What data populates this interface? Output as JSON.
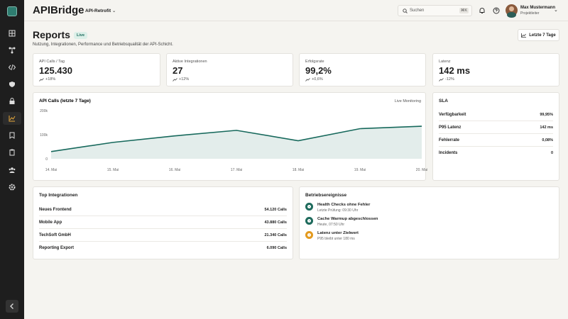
{
  "brand": "APIBridge",
  "project": "API-Retrofit",
  "search": {
    "placeholder": "Suchen",
    "shortcut": "⌘K"
  },
  "user": {
    "name": "Max Mustermann",
    "role": "Projektleiter"
  },
  "header": {
    "title": "Reports",
    "badge": "Live",
    "subtitle": "Nutzung, Integrationen, Performance und Betriebsqualität der API-Schicht.",
    "button": "Letzte 7 Tage"
  },
  "kpis": [
    {
      "label": "API Calls / Tag",
      "value": "125.430",
      "trend": "+18%"
    },
    {
      "label": "Aktive Integrationen",
      "value": "27",
      "trend": "+12%"
    },
    {
      "label": "Erfolgsrate",
      "value": "99,2%",
      "trend": "+0,6%"
    },
    {
      "label": "Latenz",
      "value": "142 ms",
      "trend": "-12%"
    }
  ],
  "chart": {
    "type": "line",
    "title": "API Calls (letzte 7 Tage)",
    "note": "Live Monitoring",
    "categories": [
      "14. Mai",
      "15. Mai",
      "16. Mai",
      "17. Mai",
      "18. Mai",
      "19. Mai",
      "20. Mai"
    ],
    "values": [
      30000,
      68000,
      95000,
      118000,
      75000,
      125000,
      135000
    ],
    "color": "#17695c",
    "ylim": [
      0,
      200000
    ],
    "yticks": [
      0,
      {
        "value": 100000,
        "label": "100k"
      },
      {
        "value": 200000,
        "label": "200k"
      }
    ],
    "grid": false
  },
  "sla": {
    "title": "SLA",
    "rows": [
      [
        "Verfügbarkeit",
        "99,95%"
      ],
      [
        "P95 Latenz",
        "142 ms"
      ],
      [
        "Fehlerrate",
        "0,08%"
      ],
      [
        "Incidents",
        "0"
      ]
    ]
  },
  "integrations": {
    "title": "Top Integrationen",
    "rows": [
      [
        "Neues Frontend",
        "54.120 Calls"
      ],
      [
        "Mobile App",
        "43.880 Calls"
      ],
      [
        "TechSoft GmbH",
        "21.340 Calls"
      ],
      [
        "Reporting Export",
        "6.090 Calls"
      ]
    ]
  },
  "events": {
    "title": "Betriebsereignisse",
    "items": [
      {
        "title": "Health Checks ohne Fehler",
        "time": "Letzte Prüfung: 09:30 Uhr"
      },
      {
        "title": "Cache Warmup abgeschlossen",
        "time": "Heute, 07:50 Uhr"
      },
      {
        "title": "Latenz unter Zielwert",
        "time": "P95 bleibt unter 180 ms"
      }
    ]
  }
}
